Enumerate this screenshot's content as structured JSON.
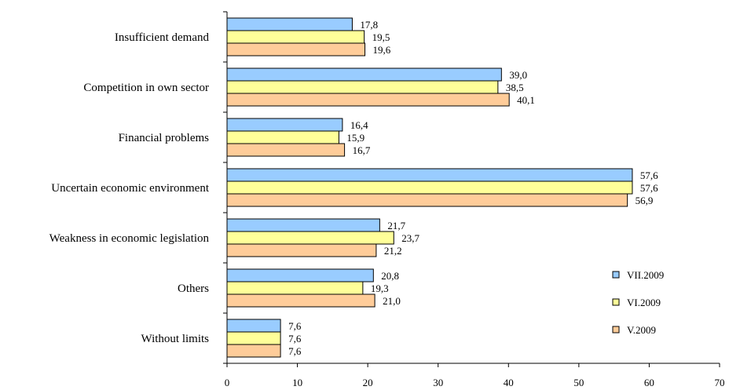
{
  "chart_data": {
    "type": "bar",
    "orientation": "horizontal",
    "categories": [
      "Insufficient demand",
      "Competition in own sector",
      "Financial problems",
      "Uncertain economic environment",
      "Weakness in economic legislation",
      "Others",
      "Without limits"
    ],
    "series": [
      {
        "name": "VII.2009",
        "color": "#99CCFF",
        "values": [
          17.8,
          39.0,
          16.4,
          57.6,
          21.7,
          20.8,
          7.6
        ],
        "labels": [
          "17,8",
          "39,0",
          "16,4",
          "57,6",
          "21,7",
          "20,8",
          "7,6"
        ]
      },
      {
        "name": "VI.2009",
        "color": "#FFFF99",
        "values": [
          19.5,
          38.5,
          15.9,
          57.6,
          23.7,
          19.3,
          7.6
        ],
        "labels": [
          "19,5",
          "38,5",
          "15,9",
          "57,6",
          "23,7",
          "19,3",
          "7,6"
        ]
      },
      {
        "name": "V.2009",
        "color": "#FFCC99",
        "values": [
          19.6,
          40.1,
          16.7,
          56.9,
          21.2,
          21.0,
          7.6
        ],
        "labels": [
          "19,6",
          "40,1",
          "16,7",
          "56,9",
          "21,2",
          "21,0",
          "7,6"
        ]
      }
    ],
    "xlim": [
      0,
      70
    ],
    "xticks": [
      "0",
      "10",
      "20",
      "30",
      "40",
      "50",
      "60",
      "70"
    ],
    "grid": false,
    "legend_position": "right"
  }
}
